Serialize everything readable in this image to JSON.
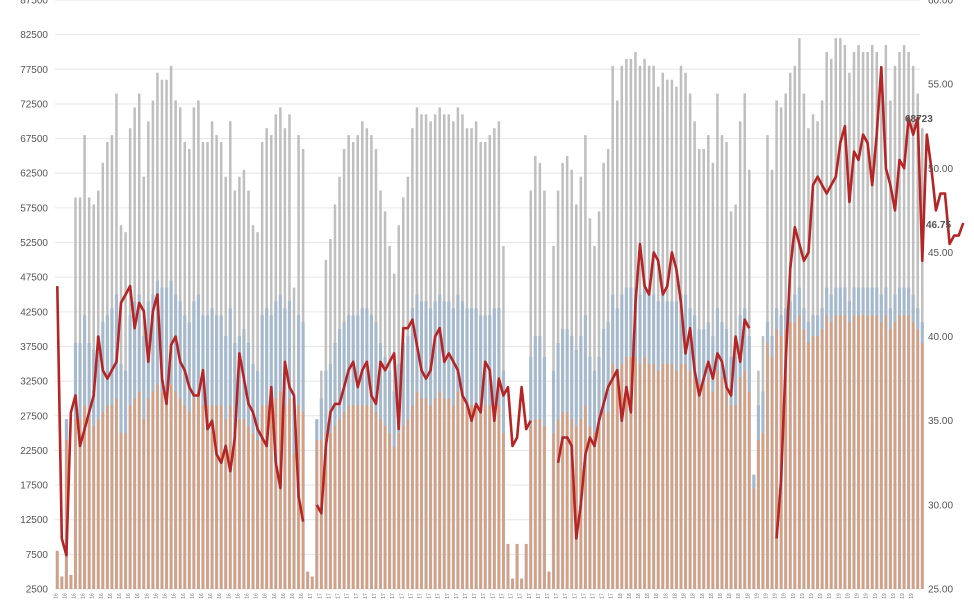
{
  "chart_data": {
    "type": "bar",
    "title": "",
    "xlabel": "",
    "ylabel": "",
    "grid": true,
    "legend": "none",
    "left_axis": {
      "ylim": [
        2500,
        87500
      ],
      "ticks": [
        "2500",
        "7500",
        "12500",
        "17500",
        "22500",
        "27500",
        "32500",
        "37500",
        "42500",
        "47500",
        "52500",
        "57500",
        "62500",
        "67500",
        "72500",
        "77500",
        "82500",
        "87500"
      ]
    },
    "right_axis": {
      "ylim": [
        25.0,
        60.0
      ],
      "ticks": [
        "25.00",
        "30.00",
        "35.00",
        "40.00",
        "45.00",
        "50.00",
        "55.00",
        "60.00"
      ]
    },
    "x_tick_labels": {
      "count": 190,
      "gaps": [
        [
          55,
          60
        ],
        [
          98,
          104
        ],
        [
          150,
          155
        ]
      ],
      "labels": [
        "16",
        "17",
        "18",
        "19"
      ],
      "label_ranges": [
        [
          0,
          54
        ],
        [
          56,
          122
        ],
        [
          123,
          152
        ],
        [
          153,
          189
        ]
      ]
    },
    "series": [
      {
        "axis": "left",
        "kind": "bar",
        "color": "#b4b4b4",
        "values": [
          8000,
          4300,
          27000,
          4500,
          59000,
          59000,
          68000,
          59000,
          58000,
          60000,
          64000,
          67000,
          68000,
          74000,
          55000,
          54000,
          69000,
          72000,
          74000,
          62000,
          70000,
          73000,
          77000,
          76000,
          76000,
          78000,
          73000,
          72000,
          67000,
          66000,
          72000,
          73000,
          67000,
          67000,
          70000,
          68000,
          67000,
          62000,
          70000,
          60000,
          62000,
          63000,
          60000,
          55000,
          54000,
          67000,
          69000,
          68000,
          71000,
          72000,
          69000,
          71000,
          46000,
          68000,
          66000,
          5000,
          4300,
          27000,
          34000,
          50000,
          53000,
          58000,
          62000,
          66000,
          68000,
          67000,
          68000,
          70000,
          69000,
          68000,
          66000,
          60000,
          57000,
          52000,
          48000,
          55000,
          59000,
          62000,
          69000,
          72000,
          71000,
          71000,
          70000,
          71000,
          72000,
          71000,
          71000,
          70000,
          72000,
          71000,
          69000,
          69000,
          70000,
          67000,
          67000,
          68000,
          69000,
          70000,
          52000,
          9000,
          4000,
          9000,
          4000,
          9000,
          60000,
          65000,
          64000,
          60000,
          5000,
          52000,
          60000,
          64000,
          65000,
          63000,
          58000,
          62000,
          68000,
          56000,
          52000,
          57000,
          64000,
          66000,
          78000,
          73000,
          78000,
          79000,
          79000,
          80000,
          78000,
          79000,
          78000,
          78000,
          75000,
          77000,
          76000,
          76000,
          75000,
          78000,
          77000,
          74000,
          70000,
          66000,
          66000,
          68000,
          64000,
          74000,
          68000,
          67000,
          57000,
          58000,
          70000,
          74000,
          63000,
          19000,
          34000,
          39000,
          68000,
          63000,
          73000,
          72000,
          74000,
          77000,
          78000,
          82000,
          74000,
          69000,
          71000,
          70000,
          73000,
          80000,
          79000,
          82000,
          82000,
          81000,
          77000,
          80000,
          81000,
          80000,
          80000,
          81000,
          80000,
          78000,
          81000,
          73000,
          78000,
          80000,
          81000,
          80000,
          78000,
          74000,
          69000
        ],
        "partial_note": "grey bars, left axis"
      },
      {
        "axis": "left",
        "kind": "bar",
        "color": "#a2b7cd",
        "values": [
          8000,
          4300,
          27000,
          4500,
          38000,
          38000,
          42000,
          38000,
          37000,
          39000,
          41000,
          42000,
          43000,
          45000,
          35000,
          34000,
          42000,
          44000,
          45000,
          39000,
          44000,
          45000,
          47000,
          46000,
          46000,
          47000,
          45000,
          44000,
          42000,
          41000,
          44000,
          45000,
          42000,
          42000,
          43000,
          42000,
          42000,
          39000,
          43000,
          38000,
          39000,
          40000,
          38000,
          35000,
          34000,
          42000,
          43000,
          42000,
          44000,
          45000,
          43000,
          44000,
          30000,
          42000,
          41000,
          5000,
          4300,
          27000,
          30000,
          34000,
          35000,
          38000,
          40000,
          41000,
          42000,
          42000,
          42000,
          43000,
          43000,
          42000,
          41000,
          38000,
          36000,
          34000,
          31000,
          35000,
          38000,
          39000,
          43000,
          45000,
          44000,
          44000,
          43000,
          44000,
          45000,
          44000,
          44000,
          43000,
          45000,
          44000,
          43000,
          43000,
          43000,
          42000,
          42000,
          42000,
          43000,
          43000,
          34000,
          9000,
          4000,
          9000,
          4000,
          9000,
          36000,
          39000,
          39000,
          36000,
          5000,
          34000,
          38000,
          40000,
          40000,
          39000,
          37000,
          39000,
          42000,
          36000,
          34000,
          36000,
          40000,
          41000,
          45000,
          43000,
          45000,
          46000,
          46000,
          46000,
          45000,
          46000,
          45000,
          45000,
          44000,
          45000,
          44000,
          44000,
          44000,
          45000,
          45000,
          43000,
          42000,
          40000,
          40000,
          41000,
          39000,
          43000,
          41000,
          40000,
          36000,
          36000,
          42000,
          43000,
          39000,
          19000,
          29000,
          31000,
          41000,
          39000,
          43000,
          42000,
          43000,
          44000,
          45000,
          46000,
          43000,
          41000,
          42000,
          42000,
          43000,
          46000,
          45000,
          46000,
          46000,
          46000,
          44000,
          46000,
          46000,
          46000,
          46000,
          46000,
          46000,
          45000,
          46000,
          43000,
          45000,
          46000,
          46000,
          46000,
          45000,
          43000,
          41000
        ]
      },
      {
        "axis": "left",
        "kind": "bar",
        "color": "#e39a6e",
        "values": [
          8000,
          4300,
          24000,
          4500,
          27000,
          27000,
          29000,
          27000,
          26000,
          27000,
          28000,
          29000,
          29000,
          30000,
          25000,
          25000,
          29000,
          30000,
          31000,
          27000,
          30000,
          31000,
          32000,
          31000,
          31000,
          32000,
          31000,
          30000,
          29000,
          28000,
          30000,
          31000,
          29000,
          29000,
          29000,
          29000,
          29000,
          27000,
          29000,
          26000,
          27000,
          27000,
          26000,
          25000,
          24000,
          29000,
          29000,
          29000,
          30000,
          31000,
          29000,
          30000,
          22000,
          29000,
          28000,
          5000,
          4300,
          24000,
          24000,
          25000,
          25000,
          26000,
          27000,
          28000,
          29000,
          29000,
          29000,
          29000,
          29000,
          29000,
          28000,
          27000,
          26000,
          25000,
          23000,
          25000,
          26000,
          27000,
          29000,
          31000,
          30000,
          30000,
          29000,
          30000,
          31000,
          30000,
          30000,
          29000,
          31000,
          30000,
          29000,
          29000,
          29000,
          29000,
          29000,
          29000,
          29000,
          29000,
          25000,
          9000,
          4000,
          9000,
          4000,
          9000,
          26000,
          27000,
          27000,
          26000,
          5000,
          25000,
          27000,
          28000,
          28000,
          27000,
          26000,
          27000,
          29000,
          26000,
          25000,
          26000,
          28000,
          28000,
          35000,
          34000,
          35000,
          36000,
          36000,
          36000,
          35000,
          36000,
          35000,
          35000,
          34000,
          35000,
          35000,
          35000,
          34000,
          35000,
          35000,
          34000,
          33000,
          32000,
          32000,
          33000,
          31000,
          34000,
          33000,
          32000,
          29000,
          29000,
          33000,
          34000,
          31000,
          17000,
          24000,
          25000,
          38000,
          36000,
          40000,
          39000,
          40000,
          41000,
          41000,
          42000,
          40000,
          38000,
          39000,
          39000,
          40000,
          42000,
          41000,
          42000,
          42000,
          42000,
          41000,
          42000,
          42000,
          42000,
          42000,
          42000,
          42000,
          41000,
          42000,
          40000,
          41000,
          42000,
          42000,
          42000,
          41000,
          40000,
          38000
        ]
      },
      {
        "axis": "right",
        "kind": "line",
        "color": "#b52525",
        "values": [
          43.0,
          28.0,
          27.0,
          35.5,
          36.5,
          33.5,
          34.5,
          35.5,
          36.5,
          40.0,
          38.0,
          37.5,
          38.0,
          38.5,
          42.0,
          42.5,
          43.0,
          40.5,
          42.0,
          41.5,
          38.5,
          41.5,
          42.5,
          37.5,
          36.0,
          39.5,
          40.0,
          38.5,
          38.0,
          37.0,
          36.5,
          36.5,
          38.0,
          34.5,
          35.0,
          33.0,
          32.5,
          33.5,
          32.0,
          34.0,
          39.0,
          37.5,
          36.0,
          35.5,
          34.5,
          34.0,
          33.5,
          37.0,
          32.5,
          31.0,
          38.5,
          37.0,
          36.5,
          30.5,
          29.0,
          null,
          null,
          30.0,
          29.5,
          33.5,
          35.5,
          36.0,
          36.0,
          37.0,
          38.0,
          38.5,
          37.0,
          38.0,
          38.5,
          36.5,
          36.0,
          38.5,
          38.0,
          38.5,
          39.0,
          34.5,
          40.5,
          40.5,
          41.0,
          39.5,
          38.0,
          37.5,
          38.0,
          40.0,
          40.5,
          38.5,
          39.0,
          38.5,
          38.0,
          36.5,
          36.0,
          35.0,
          36.0,
          35.5,
          38.5,
          38.0,
          35.0,
          37.5,
          36.5,
          37.0,
          33.5,
          34.0,
          37.0,
          34.5,
          35.0,
          null,
          null,
          null,
          null,
          null,
          32.5,
          34.0,
          34.0,
          33.5,
          28.0,
          30.0,
          33.0,
          34.0,
          33.5,
          35.0,
          36.0,
          37.0,
          37.5,
          38.0,
          35.0,
          37.0,
          35.5,
          42.0,
          45.5,
          43.0,
          42.5,
          45.0,
          44.5,
          42.5,
          43.0,
          45.0,
          44.0,
          42.0,
          39.0,
          40.5,
          38.0,
          36.5,
          37.5,
          38.5,
          37.5,
          39.0,
          38.5,
          37.0,
          36.5,
          40.0,
          38.5,
          41.0,
          40.5,
          null,
          null,
          null,
          null,
          null,
          28.0,
          31.5,
          38.5,
          44.0,
          46.5,
          45.5,
          44.5,
          45.0,
          49.0,
          49.5,
          49.0,
          48.5,
          49.0,
          49.5,
          51.5,
          52.5,
          48.0,
          51.0,
          50.5,
          52.0,
          51.5,
          49.0,
          52.0,
          56.0,
          50.0,
          49.0,
          47.5,
          50.5,
          50.0,
          53.0,
          52.0,
          53.0,
          44.5,
          52.0,
          50.0,
          47.5,
          48.5,
          48.5,
          45.5,
          46.0,
          46.0,
          46.75
        ]
      }
    ],
    "annotations": [
      {
        "text": "68723",
        "series": 0
      },
      {
        "text": "46.75",
        "series": 3
      }
    ]
  }
}
